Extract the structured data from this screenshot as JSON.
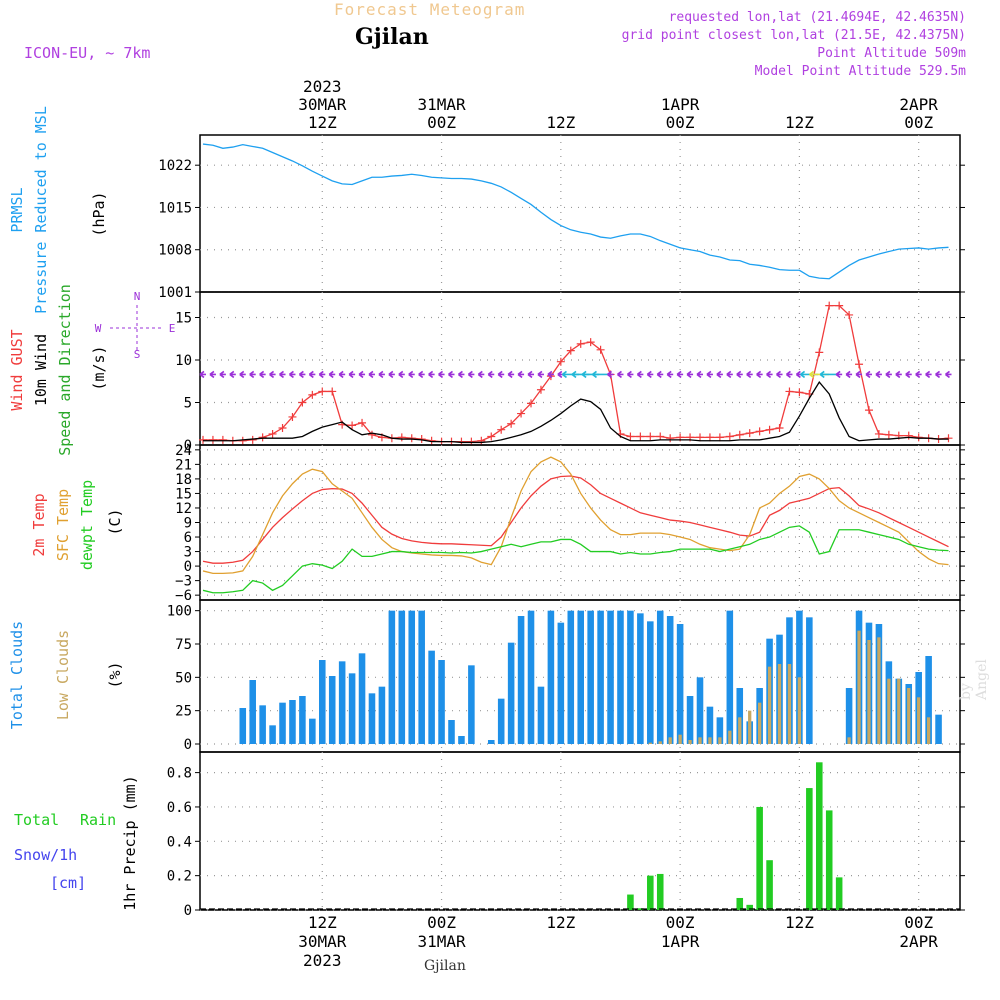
{
  "header": {
    "product": "Forecast Meteogram",
    "station": "Gjilan",
    "model": "ICON-EU, ~ 7km",
    "requested": "requested lon,lat (21.4694E, 42.4635N)",
    "grid_point": "grid point closest lon,lat (21.5E, 42.4375N)",
    "point_alt": "Point Altitude 509m",
    "model_alt": "Model Point Altitude 529.5m"
  },
  "footer": {
    "station": "Gjilan",
    "watermark": "by Angel"
  },
  "colors": {
    "pressure": "#1ea0f0",
    "gust": "#f03c3c",
    "wind": "#000000",
    "dir": "#2aa82a",
    "arrows": "#9b30d8",
    "t2m": "#f03c3c",
    "sfc": "#e0a030",
    "dewpt": "#22cc22",
    "total_clouds": "#1e90e8",
    "low_clouds": "#c8a860",
    "rain": "#22cc22",
    "snow": "#4444ee",
    "header_orange": "#f0c890",
    "header_purple": "#b040e0"
  },
  "time_axis": {
    "top": [
      {
        "t": 12,
        "l1": "30MAR",
        "l2": "12Z",
        "l0": "2023"
      },
      {
        "t": 24,
        "l1": "31MAR",
        "l2": "00Z",
        "l0": ""
      },
      {
        "t": 36,
        "l1": "",
        "l2": "12Z",
        "l0": ""
      },
      {
        "t": 48,
        "l1": "1APR",
        "l2": "00Z",
        "l0": ""
      },
      {
        "t": 60,
        "l1": "",
        "l2": "12Z",
        "l0": ""
      },
      {
        "t": 72,
        "l1": "2APR",
        "l2": "00Z",
        "l0": ""
      }
    ],
    "bottom": [
      {
        "t": 12,
        "l1": "12Z",
        "l2": "30MAR",
        "l3": "2023"
      },
      {
        "t": 24,
        "l1": "00Z",
        "l2": "31MAR",
        "l3": ""
      },
      {
        "t": 36,
        "l1": "12Z",
        "l2": "",
        "l3": ""
      },
      {
        "t": 48,
        "l1": "00Z",
        "l2": "1APR",
        "l3": ""
      },
      {
        "t": 60,
        "l1": "12Z",
        "l2": "",
        "l3": ""
      },
      {
        "t": 72,
        "l1": "00Z",
        "l2": "2APR",
        "l3": ""
      }
    ],
    "hours_range": [
      0,
      76
    ]
  },
  "chart_data": [
    {
      "type": "line",
      "name": "pressure",
      "labels": [
        "PRMSL",
        "Pressure Reduced to MSL",
        "(hPa)"
      ],
      "ylim": [
        1001,
        1027
      ],
      "yticks": [
        1001,
        1008,
        1015,
        1022
      ],
      "x": [
        0,
        1,
        2,
        3,
        4,
        5,
        6,
        7,
        8,
        9,
        10,
        11,
        12,
        13,
        14,
        15,
        16,
        17,
        18,
        19,
        20,
        21,
        22,
        23,
        24,
        25,
        26,
        27,
        28,
        29,
        30,
        31,
        32,
        33,
        34,
        35,
        36,
        37,
        38,
        39,
        40,
        41,
        42,
        43,
        44,
        45,
        46,
        47,
        48,
        49,
        50,
        51,
        52,
        53,
        54,
        55,
        56,
        57,
        58,
        59,
        60,
        61,
        62,
        63,
        64,
        65,
        66,
        67,
        68,
        69,
        70,
        71,
        72,
        73,
        74,
        75
      ],
      "series": [
        {
          "values": [
            1025.5,
            1025.3,
            1024.8,
            1025.0,
            1025.4,
            1025.1,
            1024.8,
            1024.1,
            1023.4,
            1022.7,
            1021.9,
            1021.0,
            1020.2,
            1019.4,
            1018.9,
            1018.8,
            1019.4,
            1020.0,
            1020.0,
            1020.2,
            1020.3,
            1020.5,
            1020.3,
            1020.0,
            1019.9,
            1019.8,
            1019.8,
            1019.7,
            1019.4,
            1019.0,
            1018.4,
            1017.5,
            1016.5,
            1015.5,
            1014.2,
            1013.0,
            1012.0,
            1011.3,
            1010.9,
            1010.6,
            1010.1,
            1009.9,
            1010.3,
            1010.6,
            1010.6,
            1010.2,
            1009.5,
            1008.9,
            1008.3,
            1008.0,
            1007.7,
            1007.1,
            1006.8,
            1006.3,
            1006.2,
            1005.6,
            1005.4,
            1005.1,
            1004.7,
            1004.6,
            1004.6,
            1003.6,
            1003.3,
            1003.2,
            1004.3,
            1005.4,
            1006.3,
            1006.8,
            1007.3,
            1007.7,
            1008.1,
            1008.2,
            1008.3,
            1008.1,
            1008.3,
            1008.4
          ]
        }
      ]
    },
    {
      "type": "line",
      "name": "wind",
      "labels": [
        "Wind GUST",
        "10m Wind",
        "Speed and Direction",
        "(m/s)"
      ],
      "ylim": [
        0,
        18
      ],
      "yticks": [
        0,
        5,
        10,
        15
      ],
      "compass": {
        "n": "N",
        "s": "S",
        "w": "W",
        "e": "E"
      },
      "x": [
        0,
        1,
        2,
        3,
        4,
        5,
        6,
        7,
        8,
        9,
        10,
        11,
        12,
        13,
        14,
        15,
        16,
        17,
        18,
        19,
        20,
        21,
        22,
        23,
        24,
        25,
        26,
        27,
        28,
        29,
        30,
        31,
        32,
        33,
        34,
        35,
        36,
        37,
        38,
        39,
        40,
        41,
        42,
        43,
        44,
        45,
        46,
        47,
        48,
        49,
        50,
        51,
        52,
        53,
        54,
        55,
        56,
        57,
        58,
        59,
        60,
        61,
        62,
        63,
        64,
        65,
        66,
        67,
        68,
        69,
        70,
        71,
        72,
        73,
        74,
        75
      ],
      "series": [
        {
          "name": "Wind GUST",
          "values": [
            0.6,
            0.6,
            0.6,
            0.5,
            0.5,
            0.6,
            0.9,
            1.3,
            2.0,
            3.3,
            5.0,
            5.9,
            6.3,
            6.3,
            2.4,
            2.3,
            2.6,
            1.2,
            0.9,
            0.8,
            0.9,
            0.8,
            0.7,
            0.5,
            0.4,
            0.4,
            0.4,
            0.4,
            0.5,
            1.0,
            1.8,
            2.5,
            3.7,
            4.9,
            6.5,
            8.1,
            9.8,
            11.1,
            11.9,
            12.1,
            11.2,
            8.3,
            1.3,
            1.0,
            1.0,
            1.0,
            1.0,
            0.8,
            0.9,
            0.9,
            0.9,
            0.9,
            0.9,
            1.0,
            1.2,
            1.4,
            1.6,
            1.8,
            2.0,
            6.3,
            6.2,
            6.0,
            10.9,
            16.4,
            16.4,
            15.3,
            9.5,
            4.1,
            1.3,
            1.2,
            1.1,
            1.1,
            0.9,
            0.8,
            0.7,
            0.8
          ]
        },
        {
          "name": "10m Wind",
          "values": [
            0.5,
            0.5,
            0.5,
            0.5,
            0.6,
            0.7,
            0.8,
            0.8,
            0.8,
            0.8,
            1.0,
            1.6,
            2.1,
            2.4,
            2.7,
            1.8,
            1.2,
            1.4,
            1.2,
            0.8,
            0.7,
            0.7,
            0.6,
            0.4,
            0.4,
            0.4,
            0.3,
            0.3,
            0.3,
            0.4,
            0.6,
            0.9,
            1.2,
            1.6,
            2.2,
            2.9,
            3.7,
            4.6,
            5.4,
            5.1,
            4.2,
            2.0,
            1.0,
            0.5,
            0.5,
            0.5,
            0.6,
            0.6,
            0.6,
            0.6,
            0.5,
            0.5,
            0.5,
            0.5,
            0.6,
            0.6,
            0.6,
            0.8,
            1.0,
            1.5,
            3.4,
            5.5,
            7.4,
            6.0,
            3.2,
            1.0,
            0.5,
            0.6,
            0.7,
            0.7,
            0.8,
            0.9,
            0.8,
            0.8,
            0.7,
            0.7
          ]
        }
      ]
    },
    {
      "type": "line",
      "name": "temperature",
      "labels": [
        "2m Temp",
        "SFC Temp",
        "dewpt Temp",
        "(C)"
      ],
      "ylim": [
        -7,
        25
      ],
      "yticks": [
        -6,
        -3,
        0,
        3,
        6,
        9,
        12,
        15,
        18,
        21,
        24
      ],
      "x": [
        0,
        1,
        2,
        3,
        4,
        5,
        6,
        7,
        8,
        9,
        10,
        11,
        12,
        13,
        14,
        15,
        16,
        17,
        18,
        19,
        20,
        21,
        22,
        23,
        24,
        25,
        26,
        27,
        28,
        29,
        30,
        31,
        32,
        33,
        34,
        35,
        36,
        37,
        38,
        39,
        40,
        41,
        42,
        43,
        44,
        45,
        46,
        47,
        48,
        49,
        50,
        51,
        52,
        53,
        54,
        55,
        56,
        57,
        58,
        59,
        60,
        61,
        62,
        63,
        64,
        65,
        66,
        67,
        68,
        69,
        70,
        71,
        72,
        73,
        74,
        75
      ],
      "series": [
        {
          "name": "2m Temp",
          "values": [
            1.0,
            0.6,
            0.6,
            0.8,
            1.2,
            3.0,
            5.5,
            8.0,
            10.0,
            11.8,
            13.5,
            15.0,
            15.8,
            16.0,
            15.9,
            15.0,
            13.0,
            10.5,
            8.0,
            6.6,
            5.7,
            5.2,
            4.9,
            4.7,
            4.6,
            4.6,
            4.5,
            4.4,
            4.3,
            4.2,
            6.0,
            9.0,
            12.0,
            14.5,
            16.5,
            18.0,
            18.5,
            18.6,
            18.2,
            16.8,
            15.0,
            14.0,
            13.0,
            12.0,
            11.0,
            10.5,
            10.0,
            9.5,
            9.3,
            9.0,
            8.5,
            8.0,
            7.5,
            7.0,
            6.4,
            6.2,
            7.0,
            10.5,
            11.5,
            13.0,
            13.5,
            14.0,
            15.0,
            16.0,
            16.2,
            14.5,
            12.5,
            11.8,
            11.0,
            10.0,
            9.0,
            8.0,
            7.0,
            6.0,
            5.0,
            4.0
          ]
        },
        {
          "name": "SFC Temp",
          "values": [
            -1.0,
            -1.5,
            -1.5,
            -1.4,
            -1.0,
            2.0,
            6.5,
            11.0,
            14.5,
            17.0,
            19.0,
            20.0,
            19.5,
            17.0,
            15.5,
            14.0,
            11.0,
            8.0,
            5.5,
            3.8,
            3.0,
            2.7,
            2.5,
            2.3,
            2.2,
            2.2,
            2.1,
            1.7,
            0.8,
            0.3,
            4.0,
            10.0,
            15.5,
            19.5,
            21.5,
            22.5,
            21.5,
            19.0,
            15.0,
            12.0,
            9.5,
            7.5,
            6.5,
            6.5,
            6.8,
            6.8,
            6.8,
            6.5,
            6.0,
            5.5,
            4.5,
            3.8,
            3.5,
            3.2,
            3.5,
            6.5,
            12.0,
            13.0,
            15.0,
            16.5,
            18.5,
            19.0,
            18.0,
            16.0,
            13.5,
            12.0,
            11.0,
            10.0,
            9.0,
            8.0,
            7.0,
            5.0,
            3.0,
            1.5,
            0.5,
            0.3
          ]
        },
        {
          "name": "dewpt Temp",
          "values": [
            -5.0,
            -5.5,
            -5.5,
            -5.3,
            -5.0,
            -3.0,
            -3.5,
            -5.0,
            -4.0,
            -2.0,
            0.0,
            0.5,
            0.2,
            -0.5,
            1.0,
            3.5,
            2.0,
            2.0,
            2.5,
            3.0,
            3.0,
            2.8,
            2.8,
            2.8,
            2.8,
            2.7,
            2.8,
            2.7,
            3.0,
            3.5,
            4.0,
            4.5,
            4.0,
            4.5,
            5.0,
            5.0,
            5.5,
            5.5,
            4.5,
            3.0,
            3.0,
            3.0,
            2.5,
            2.8,
            2.5,
            2.5,
            2.8,
            3.0,
            3.5,
            3.5,
            3.5,
            3.5,
            3.0,
            3.5,
            4.0,
            4.5,
            5.5,
            6.0,
            7.0,
            8.0,
            8.3,
            7.0,
            2.5,
            3.0,
            7.5,
            7.5,
            7.5,
            7.0,
            6.5,
            6.0,
            5.5,
            4.5,
            4.0,
            3.5,
            3.3,
            3.2
          ]
        }
      ]
    },
    {
      "type": "bar",
      "name": "clouds",
      "labels": [
        "Total Clouds",
        "Low Clouds",
        "(%)"
      ],
      "ylim": [
        -6,
        108
      ],
      "yticks": [
        0,
        25,
        50,
        75,
        100
      ],
      "x": [
        0,
        1,
        2,
        3,
        4,
        5,
        6,
        7,
        8,
        9,
        10,
        11,
        12,
        13,
        14,
        15,
        16,
        17,
        18,
        19,
        20,
        21,
        22,
        23,
        24,
        25,
        26,
        27,
        28,
        29,
        30,
        31,
        32,
        33,
        34,
        35,
        36,
        37,
        38,
        39,
        40,
        41,
        42,
        43,
        44,
        45,
        46,
        47,
        48,
        49,
        50,
        51,
        52,
        53,
        54,
        55,
        56,
        57,
        58,
        59,
        60,
        61,
        62,
        63,
        64,
        65,
        66,
        67,
        68,
        69,
        70,
        71,
        72,
        73,
        74,
        75
      ],
      "series": [
        {
          "name": "Total Clouds",
          "values": [
            0,
            0,
            0,
            0,
            27,
            48,
            29,
            14,
            31,
            33,
            36,
            19,
            63,
            51,
            62,
            53,
            68,
            38,
            43,
            100,
            100,
            100,
            100,
            70,
            63,
            18,
            6,
            59,
            0,
            3,
            34,
            76,
            96,
            100,
            43,
            100,
            91,
            100,
            100,
            100,
            100,
            100,
            100,
            100,
            98,
            92,
            100,
            96,
            90,
            36,
            50,
            28,
            20,
            100,
            42,
            17,
            42,
            79,
            82,
            95,
            100,
            95,
            0,
            0,
            0,
            42,
            100,
            91,
            90,
            62,
            49,
            45,
            54,
            66,
            22,
            0
          ],
          "note": ""
        },
        {
          "name": "Low Clouds",
          "values": [
            0,
            0,
            0,
            0,
            0,
            0,
            0,
            0,
            0,
            0,
            0,
            0,
            0,
            0,
            0,
            0,
            0,
            0,
            0,
            0,
            0,
            0,
            0,
            0,
            0,
            0,
            0,
            0,
            0,
            0,
            0,
            0,
            0,
            0,
            0,
            0,
            0,
            0,
            0,
            0,
            0,
            0,
            0,
            0,
            0,
            1,
            2,
            5,
            7,
            3,
            5,
            5,
            5,
            10,
            20,
            25,
            31,
            58,
            60,
            60,
            50,
            0,
            0,
            0,
            0,
            5,
            85,
            78,
            80,
            49,
            49,
            42,
            35,
            20,
            0,
            0
          ]
        }
      ]
    },
    {
      "type": "bar",
      "name": "precip",
      "labels": [
        "Total",
        "Rain",
        "Snow/1h",
        "[cm]",
        "1hr Precip (mm)"
      ],
      "ylim": [
        0,
        0.92
      ],
      "yticks": [
        0,
        0.2,
        0.4,
        0.6,
        0.8
      ],
      "ytick_labels": [
        "0",
        "0.2",
        "0.4",
        "0.6",
        "0.8"
      ],
      "x": [
        43,
        44,
        45,
        46,
        54,
        55,
        56,
        57,
        61,
        62,
        63,
        64,
        65
      ],
      "series": [
        {
          "name": "Rain",
          "values": [
            0.09,
            0.01,
            0.2,
            0.21,
            0.07,
            0.03,
            0.6,
            0.29,
            0.71,
            0.86,
            0.58,
            0.19,
            0.0
          ]
        }
      ]
    }
  ]
}
